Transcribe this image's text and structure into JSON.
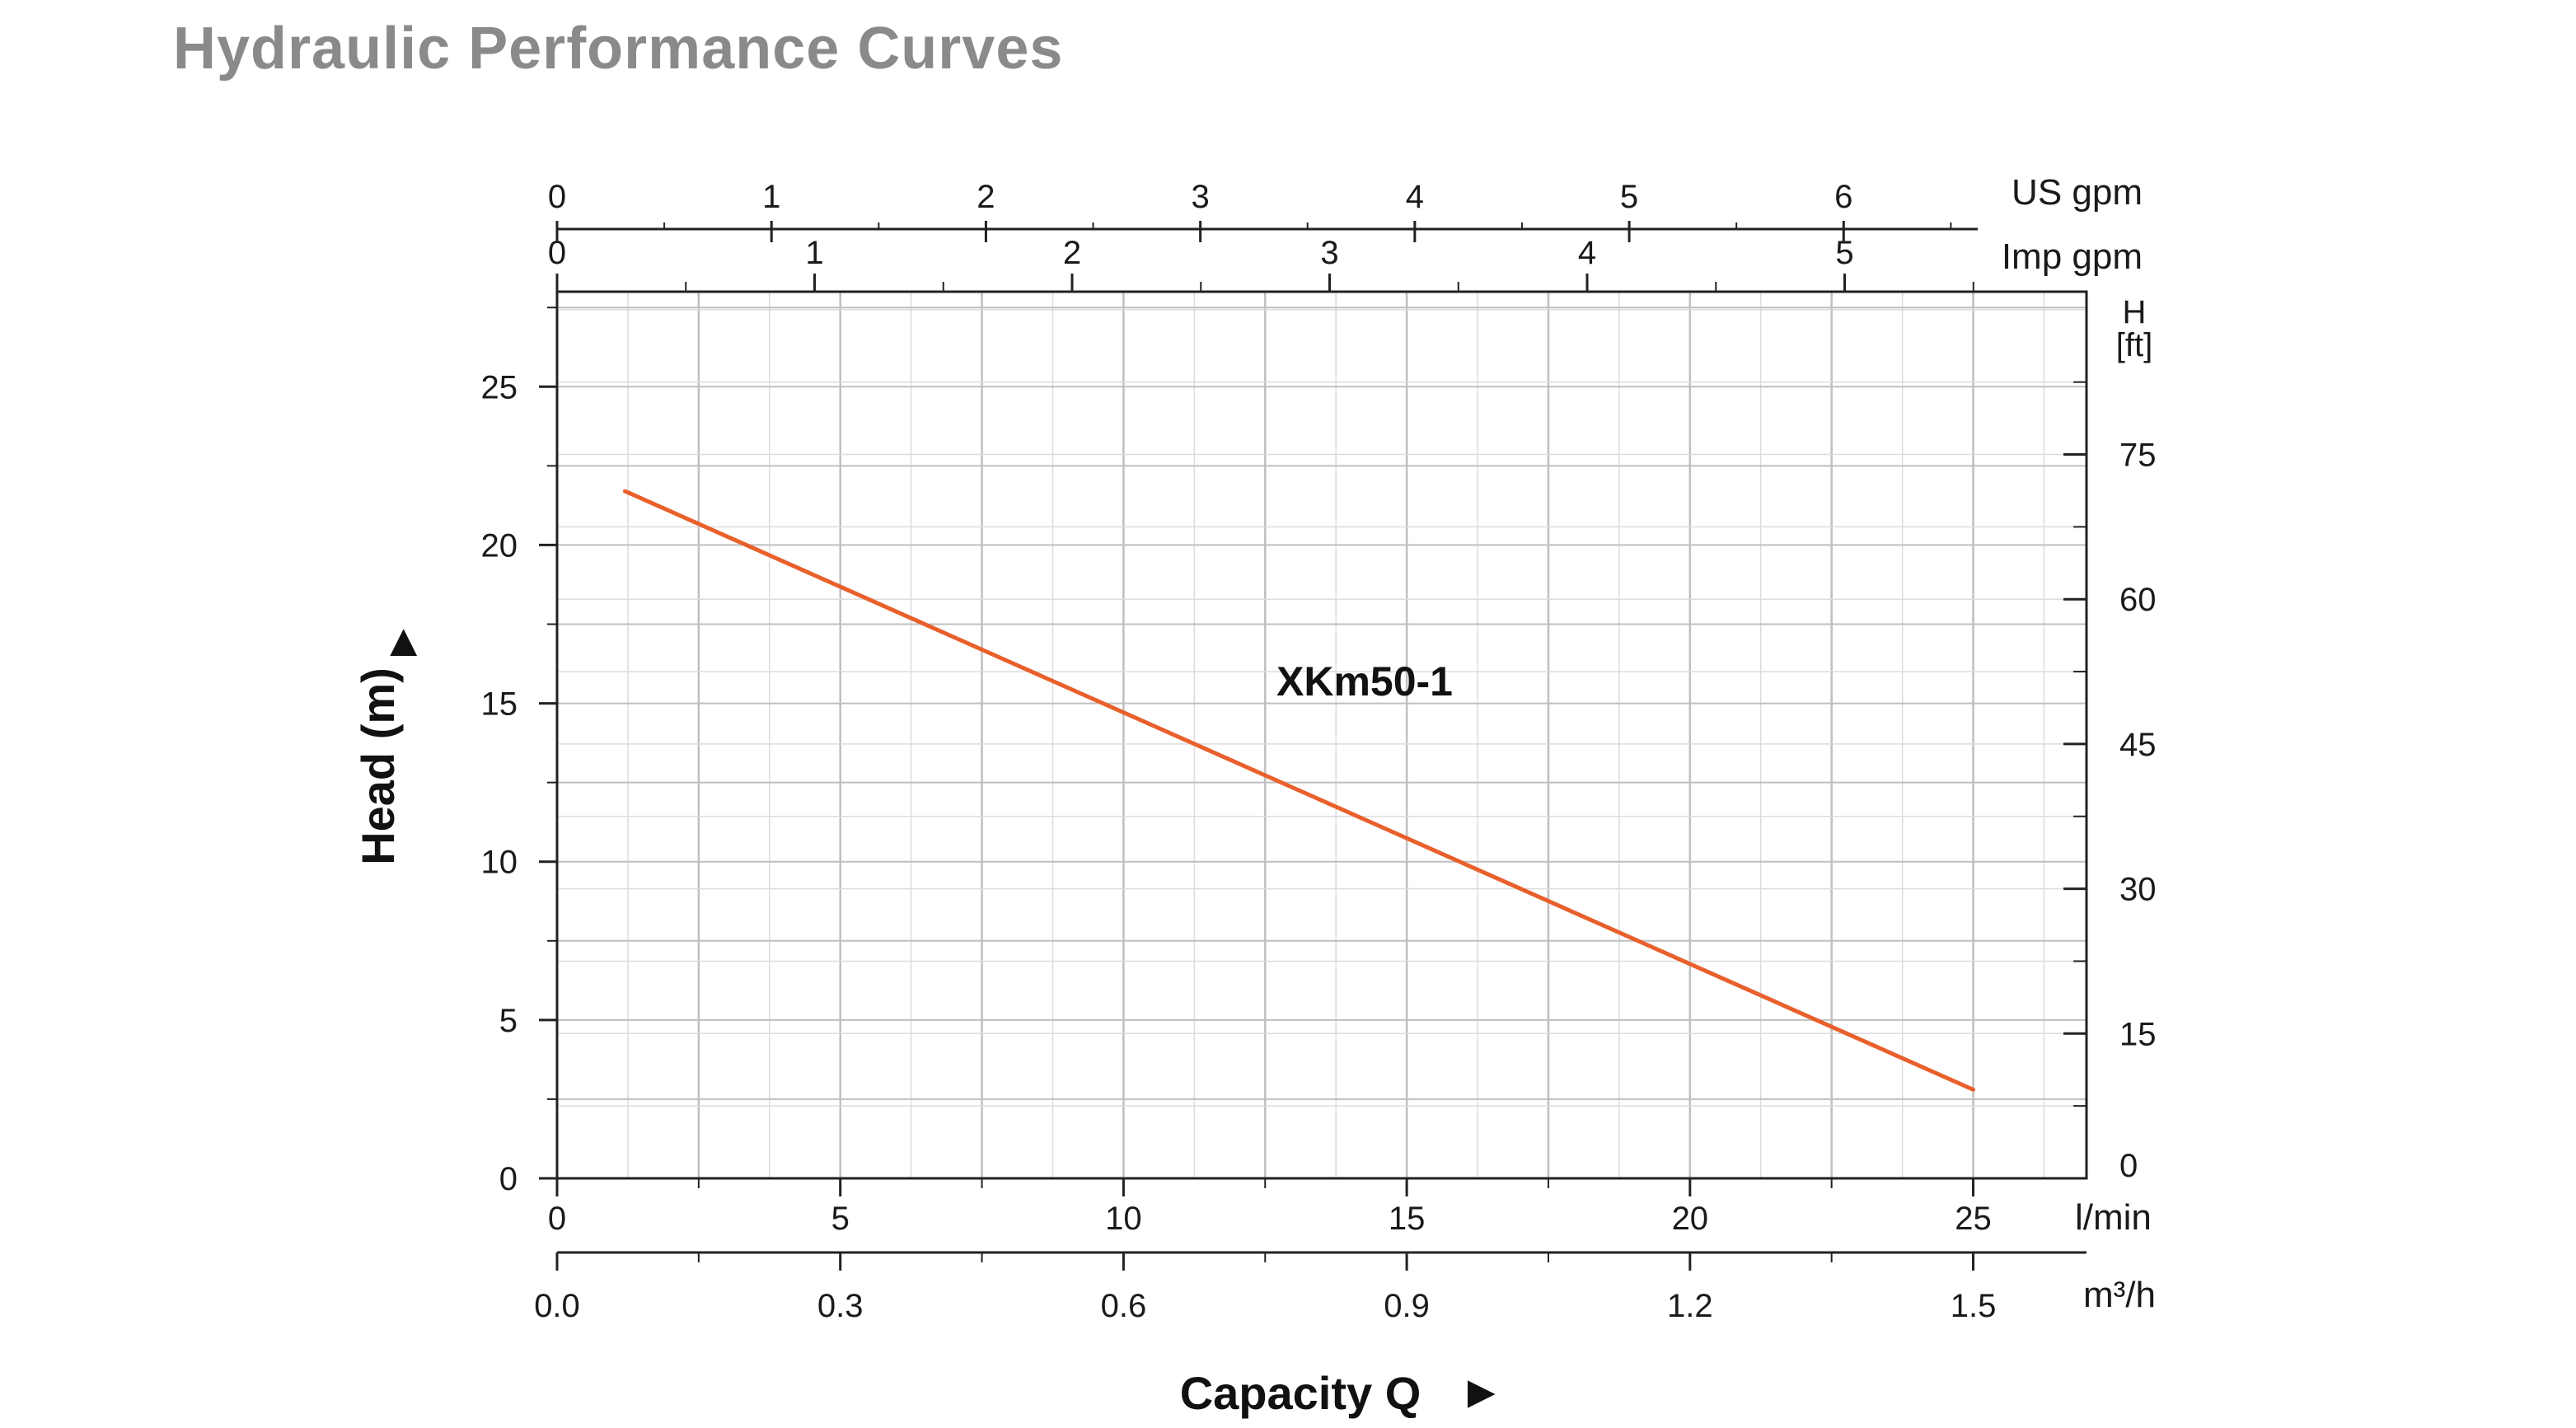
{
  "page": {
    "title": "Hydraulic Performance Curves"
  },
  "colors": {
    "curve": "#e8602c",
    "grid_major": "#bfbfbf",
    "grid_minor": "#dcdcdc",
    "axis": "#222222",
    "title": "#8a8a8a"
  },
  "chart_data": {
    "type": "line",
    "title": "Hydraulic Performance Curves",
    "xlabel": "Capacity Q",
    "ylabel": "Head (m)",
    "x_unit": "l/min",
    "xlim": [
      0,
      27
    ],
    "ylim": [
      0,
      28
    ],
    "x_ticks": [
      0,
      5,
      10,
      15,
      20,
      25
    ],
    "y_ticks": [
      0,
      5,
      10,
      15,
      20,
      25
    ],
    "grid": true,
    "series": [
      {
        "name": "XKm50-1",
        "x": [
          1.2,
          25
        ],
        "y": [
          21.7,
          2.8
        ]
      }
    ],
    "secondary_axes": {
      "m3h": {
        "label": "m³/h",
        "ticks": [
          0.0,
          0.3,
          0.6,
          0.9,
          1.2,
          1.5
        ],
        "tick_labels": [
          "0.0",
          "0.3",
          "0.6",
          "0.9",
          "1.2",
          "1.5"
        ]
      },
      "us_gpm": {
        "label": "US gpm",
        "ticks": [
          0,
          1,
          2,
          3,
          4,
          5,
          6
        ]
      },
      "imp_gpm": {
        "label": "Imp gpm",
        "ticks": [
          0,
          1,
          2,
          3,
          4,
          5
        ]
      },
      "head_ft": {
        "label_line1": "H",
        "label_line2": "[ft]",
        "ticks": [
          0,
          15,
          30,
          45,
          60,
          75
        ]
      }
    }
  }
}
